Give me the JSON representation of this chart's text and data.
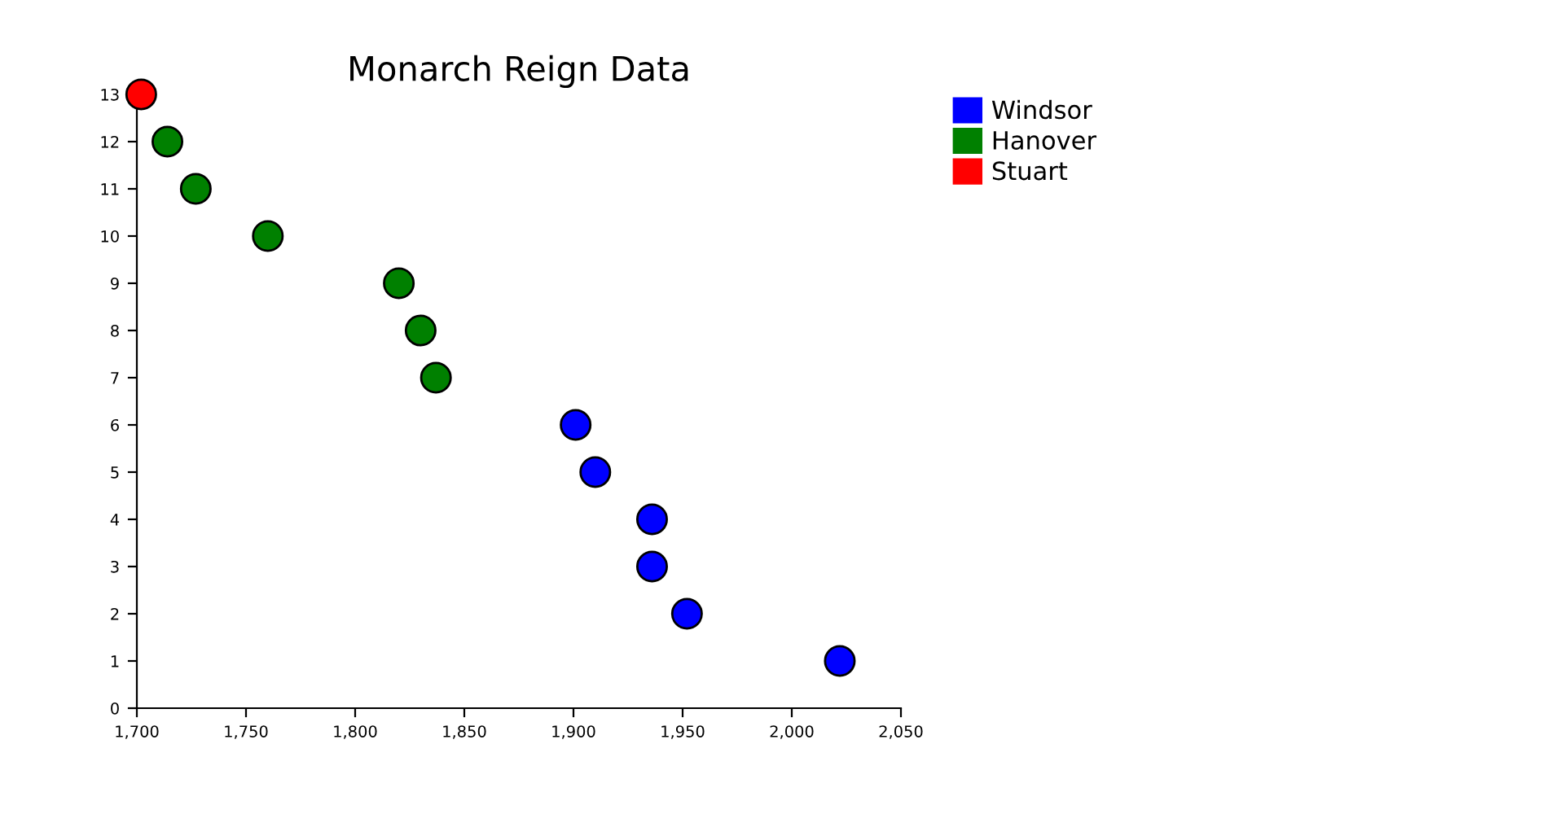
{
  "chart_data": {
    "type": "scatter",
    "title": "Monarch Reign Data",
    "series": [
      {
        "name": "Windsor",
        "color": "#0000ff",
        "x": [
          1901,
          1910,
          1936,
          1936,
          1952,
          2022
        ],
        "values": [
          6,
          5,
          4,
          3,
          2,
          1
        ]
      },
      {
        "name": "Hanover",
        "color": "#008000",
        "x": [
          1714,
          1727,
          1760,
          1820,
          1830,
          1837
        ],
        "values": [
          12,
          11,
          10,
          9,
          8,
          7
        ]
      },
      {
        "name": "Stuart",
        "color": "#ff0000",
        "x": [
          1702
        ],
        "values": [
          13
        ]
      }
    ],
    "xlim": [
      1700,
      2050
    ],
    "xticks": [
      {
        "value": 1700,
        "label": "1,700"
      },
      {
        "value": 1750,
        "label": "1,750"
      },
      {
        "value": 1800,
        "label": "1,800"
      },
      {
        "value": 1850,
        "label": "1,850"
      },
      {
        "value": 1900,
        "label": "1,900"
      },
      {
        "value": 1950,
        "label": "1,950"
      },
      {
        "value": 2000,
        "label": "2,000"
      },
      {
        "value": 2050,
        "label": "2,050"
      }
    ],
    "ylim": [
      0,
      13
    ],
    "yticks": [
      0,
      1,
      2,
      3,
      4,
      5,
      6,
      7,
      8,
      9,
      10,
      11,
      12,
      13
    ],
    "grid": false,
    "legend": "top right",
    "marker": "circle"
  }
}
